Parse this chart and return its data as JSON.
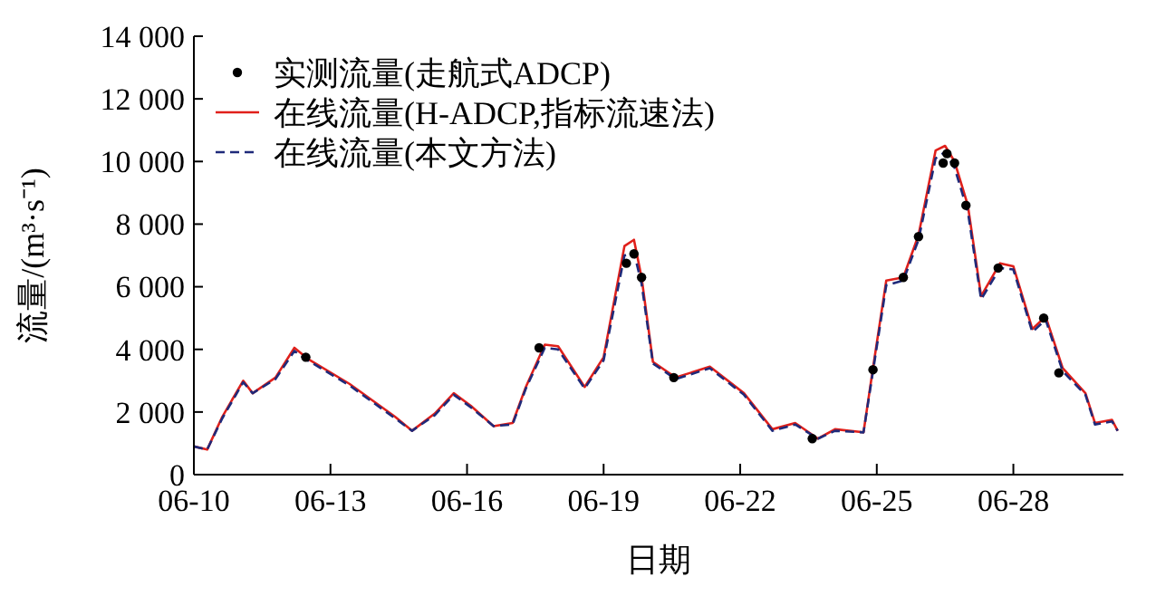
{
  "chart_data": {
    "type": "line",
    "xlabel": "日期",
    "ylabel": "流量/(m³·s⁻¹)",
    "x": [
      "--06-10T00:00",
      "--06-10T07:00",
      "--06-10T15:00",
      "--06-11T02:00",
      "--06-11T07:00",
      "--06-11T19:00",
      "--06-12T05:00",
      "--06-12T12:00",
      "--06-13T10:00",
      "--06-14T10:00",
      "--06-14T19:00",
      "--06-15T07:00",
      "--06-15T17:00",
      "--06-16T02:00",
      "--06-16T14:00",
      "--06-17T00:00",
      "--06-17T07:00",
      "--06-17T17:00",
      "--06-18T00:00",
      "--06-18T14:00",
      "--06-19T00:00",
      "--06-19T11:00",
      "--06-19T16:00",
      "--06-19T20:00",
      "--06-20T02:00",
      "--06-20T14:00",
      "--06-21T08:00",
      "--06-22T02:00",
      "--06-22T17:00",
      "--06-23T05:00",
      "--06-23T17:00",
      "--06-24T02:00",
      "--06-24T17:00",
      "--06-24T22:00",
      "--06-25T05:00",
      "--06-25T14:00",
      "--06-25T22:00",
      "--06-26T07:00",
      "--06-26T12:00",
      "--06-26T17:00",
      "--06-27T00:00",
      "--06-27T07:00",
      "--06-27T17:00",
      "--06-28T00:00",
      "--06-28T10:00",
      "--06-28T17:00",
      "--06-29T02:00",
      "--06-29T14:00",
      "--06-29T19:00",
      "--06-30T04:00",
      "--06-30T07:00"
    ],
    "series": [
      {
        "name": "实测流量(走航式ADCP)",
        "type": "scatter",
        "color": "#000000",
        "marker": "circle",
        "x": [
          "--06-12T11:00",
          "--06-17T14:00",
          "--06-19T12:00",
          "--06-19T16:00",
          "--06-19T20:00",
          "--06-20T13:00",
          "--06-23T14:00",
          "--06-24T22:00",
          "--06-25T14:00",
          "--06-25T22:00",
          "--06-26T11:00",
          "--06-26T13:00",
          "--06-26T17:00",
          "--06-26T23:00",
          "--06-27T16:00",
          "--06-28T16:00",
          "--06-29T00:00"
        ],
        "values": [
          3750,
          4050,
          6750,
          7050,
          6300,
          3100,
          1150,
          3350,
          6300,
          7600,
          9950,
          10250,
          9950,
          8600,
          6600,
          5000,
          3250
        ]
      },
      {
        "name": "在线流量(H-ADCP,指标流速法)",
        "color": "#e0201b",
        "line_style": "solid",
        "values": [
          900,
          800,
          1850,
          3000,
          2600,
          3100,
          4050,
          3700,
          2900,
          1850,
          1400,
          1950,
          2600,
          2200,
          1550,
          1650,
          2800,
          4150,
          4100,
          2800,
          3750,
          7300,
          7500,
          6300,
          3600,
          3100,
          3450,
          2600,
          1450,
          1650,
          1150,
          1450,
          1350,
          3400,
          6200,
          6300,
          7650,
          10350,
          10500,
          10000,
          8600,
          5700,
          6750,
          6650,
          4650,
          5050,
          3400,
          2600,
          1650,
          1750,
          1400
        ]
      },
      {
        "name": "在线流量(本文方法)",
        "color": "#1f2a7a",
        "line_style": "dashed",
        "values": [
          900,
          800,
          1800,
          2950,
          2600,
          3050,
          3950,
          3650,
          2850,
          1800,
          1400,
          1900,
          2550,
          2150,
          1550,
          1600,
          2750,
          4050,
          4000,
          2750,
          3650,
          7000,
          7100,
          6100,
          3550,
          3050,
          3400,
          2550,
          1400,
          1600,
          1150,
          1400,
          1350,
          3300,
          6050,
          6200,
          7500,
          10100,
          10300,
          9800,
          8400,
          5600,
          6600,
          6550,
          4550,
          4950,
          3300,
          2550,
          1600,
          1700,
          1400
        ]
      }
    ],
    "xlim": [
      "--06-10T00:00",
      "--06-30T10:00"
    ],
    "xticks": [
      {
        "value": "--06-10",
        "label": "06-10"
      },
      {
        "value": "--06-13",
        "label": "06-13"
      },
      {
        "value": "--06-16",
        "label": "06-16"
      },
      {
        "value": "--06-19",
        "label": "06-19"
      },
      {
        "value": "--06-22",
        "label": "06-22"
      },
      {
        "value": "--06-25",
        "label": "06-25"
      },
      {
        "value": "--06-28",
        "label": "06-28"
      }
    ],
    "ylim": [
      0,
      14000
    ],
    "yticks": [
      0,
      {
        "value": 2000,
        "label": "2 000"
      },
      {
        "value": 4000,
        "label": "4 000"
      },
      {
        "value": 6000,
        "label": "6 000"
      },
      {
        "value": 8000,
        "label": "8 000"
      },
      {
        "value": 10000,
        "label": "10 000"
      },
      {
        "value": 12000,
        "label": "12 000"
      },
      {
        "value": 14000,
        "label": "14 000"
      }
    ],
    "grid": false,
    "legend": "top left"
  }
}
